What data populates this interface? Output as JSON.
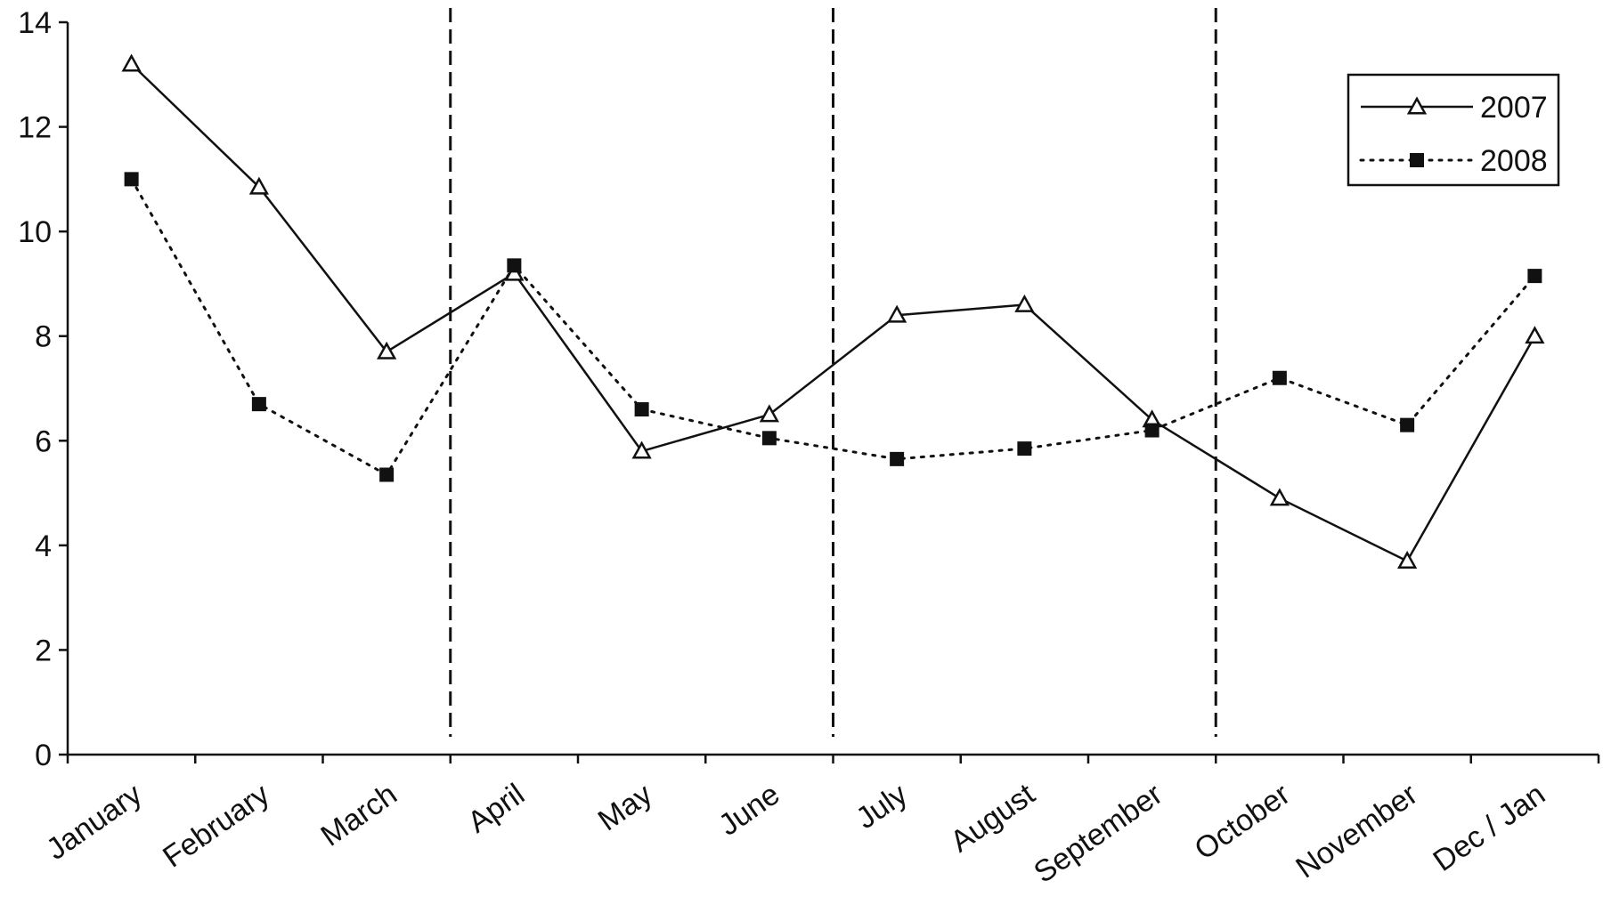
{
  "chart_data": {
    "type": "line",
    "categories": [
      "January",
      "February",
      "March",
      "April",
      "May",
      "June",
      "July",
      "August",
      "September",
      "October",
      "November",
      "Dec / Jan"
    ],
    "ylim": [
      0,
      14
    ],
    "yticks": [
      "0",
      "2",
      "4",
      "6",
      "8",
      "10",
      "12",
      "14"
    ],
    "series": [
      {
        "name": "2007",
        "values": [
          13.2,
          10.85,
          7.7,
          9.2,
          5.8,
          6.5,
          8.4,
          8.6,
          6.4,
          4.9,
          3.7,
          8.0
        ],
        "line": "solid",
        "marker": "open-triangle",
        "color": "#111111"
      },
      {
        "name": "2008",
        "values": [
          11.0,
          6.7,
          5.35,
          9.35,
          6.6,
          6.05,
          5.65,
          5.85,
          6.2,
          7.2,
          6.3,
          9.15
        ],
        "line": "dotted",
        "marker": "filled-square",
        "color": "#111111"
      }
    ],
    "reference_lines_after_category": [
      "March",
      "June",
      "September"
    ],
    "reference_line_style": "dashed",
    "legend_position": "top-right",
    "grid": false
  }
}
